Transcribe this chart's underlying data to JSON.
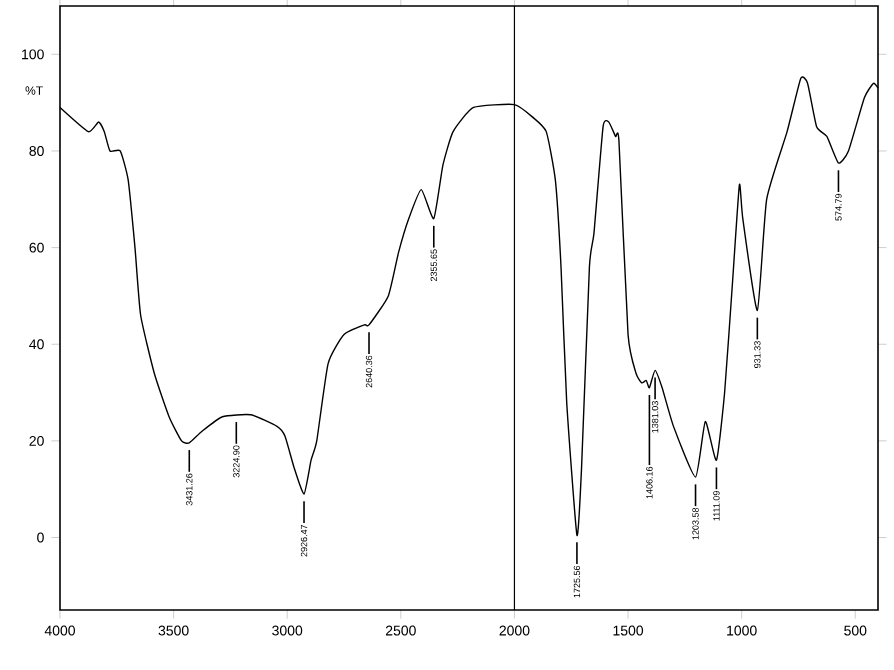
{
  "chart_data": {
    "type": "line",
    "ylabel": "%T",
    "xlim": [
      4000,
      400
    ],
    "ylim": [
      -15,
      110
    ],
    "xticks": [
      4000,
      3500,
      3000,
      2500,
      2000,
      1500,
      1000,
      500
    ],
    "yticks": [
      0,
      20,
      40,
      60,
      80,
      100
    ],
    "marker": "none",
    "line_style": "solid",
    "ref_lines": [
      {
        "axis": "x",
        "value": 2000,
        "color": "#000000"
      }
    ],
    "series": [
      {
        "color": "#000000",
        "x": [
          4000,
          3875,
          3830,
          3805,
          3780,
          3735,
          3700,
          3670,
          3645,
          3585,
          3520,
          3465,
          3431,
          3375,
          3285,
          3160,
          3045,
          3010,
          2970,
          2926,
          2895,
          2870,
          2820,
          2750,
          2660,
          2640,
          2555,
          2510,
          2465,
          2410,
          2355,
          2315,
          2270,
          2180,
          2000,
          1920,
          1860,
          1820,
          1795,
          1770,
          1725,
          1705,
          1670,
          1650,
          1610,
          1585,
          1555,
          1540,
          1500,
          1465,
          1440,
          1420,
          1406,
          1381,
          1350,
          1300,
          1203,
          1160,
          1111,
          1075,
          1040,
          1010,
          995,
          931,
          890,
          800,
          740,
          710,
          670,
          625,
          574,
          530,
          460,
          420,
          400
        ],
        "values": [
          89,
          84,
          86,
          84,
          80,
          80,
          74,
          60,
          46,
          34,
          25,
          20,
          19.6,
          22,
          25,
          25.4,
          23,
          21,
          14.5,
          9,
          16,
          20,
          36,
          42,
          44,
          44,
          50,
          59,
          66,
          72,
          66,
          77,
          84,
          89,
          89.6,
          87,
          84,
          74,
          56,
          28,
          0.5,
          14,
          56,
          63,
          85,
          86,
          83,
          82,
          42,
          34,
          32,
          32.5,
          31,
          34.6,
          31,
          23,
          12.5,
          24,
          16,
          30,
          53,
          73,
          66,
          47,
          70,
          84,
          95,
          94,
          85,
          83,
          77.5,
          80,
          91,
          94,
          93
        ]
      }
    ],
    "annotations": [
      {
        "text": "3431.26",
        "x": 3431,
        "y": 19.6
      },
      {
        "text": "3224.90",
        "x": 3224,
        "y": 25.4
      },
      {
        "text": "2926.47",
        "x": 2926,
        "y": 9
      },
      {
        "text": "2640.36",
        "x": 2640,
        "y": 44
      },
      {
        "text": "2355.65",
        "x": 2355,
        "y": 66
      },
      {
        "text": "1725.56",
        "x": 1725,
        "y": 0.5
      },
      {
        "text": "1406.16",
        "x": 1406,
        "y": 31
      },
      {
        "text": "1381.03",
        "x": 1381,
        "y": 34.6
      },
      {
        "text": "1203.58",
        "x": 1203,
        "y": 12.5
      },
      {
        "text": "1111.09",
        "x": 1111,
        "y": 16
      },
      {
        "text": "931.33",
        "x": 931,
        "y": 47
      },
      {
        "text": "574.79",
        "x": 574,
        "y": 77.5
      }
    ]
  }
}
